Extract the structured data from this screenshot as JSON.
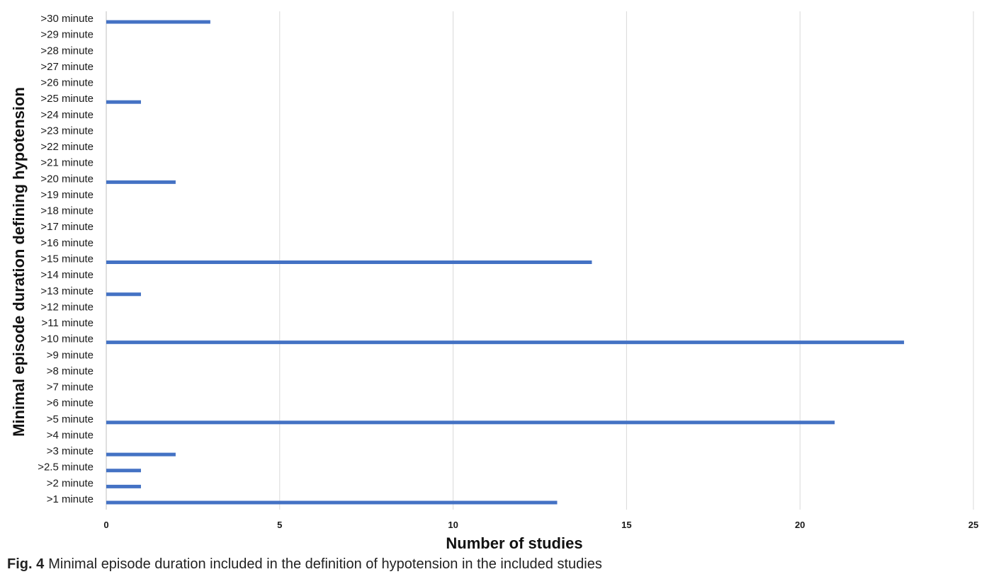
{
  "chart_data": {
    "type": "bar",
    "orientation": "horizontal",
    "xlabel": "Number of studies",
    "ylabel": "Minimal episode duration defining hypotension",
    "xlim": [
      0,
      25
    ],
    "xticks": [
      "0",
      "5",
      "10",
      "15",
      "20",
      "25"
    ],
    "grid": "vertical",
    "bar_color": "#4472C4",
    "categories": [
      ">1 minute",
      ">2 minute",
      ">2.5 minute",
      ">3 minute",
      ">4 minute",
      ">5 minute",
      ">6 minute",
      ">7 minute",
      ">8 minute",
      ">9 minute",
      ">10 minute",
      ">11 minute",
      ">12 minute",
      ">13 minute",
      ">14 minute",
      ">15 minute",
      ">16 minute",
      ">17 minute",
      ">18 minute",
      ">19 minute",
      ">20 minute",
      ">21 minute",
      ">22 minute",
      ">23 minute",
      ">24 minute",
      ">25 minute",
      ">26 minute",
      ">27 minute",
      ">28 minute",
      ">29 minute",
      ">30 minute"
    ],
    "values": [
      13,
      1,
      1,
      2,
      0,
      21,
      0,
      0,
      0,
      0,
      23,
      0,
      0,
      1,
      0,
      14,
      0,
      0,
      0,
      0,
      2,
      0,
      0,
      0,
      0,
      1,
      0,
      0,
      0,
      0,
      3
    ]
  },
  "caption": {
    "label": "Fig. 4",
    "text": "Minimal episode duration included in the definition of hypotension in the included studies"
  }
}
